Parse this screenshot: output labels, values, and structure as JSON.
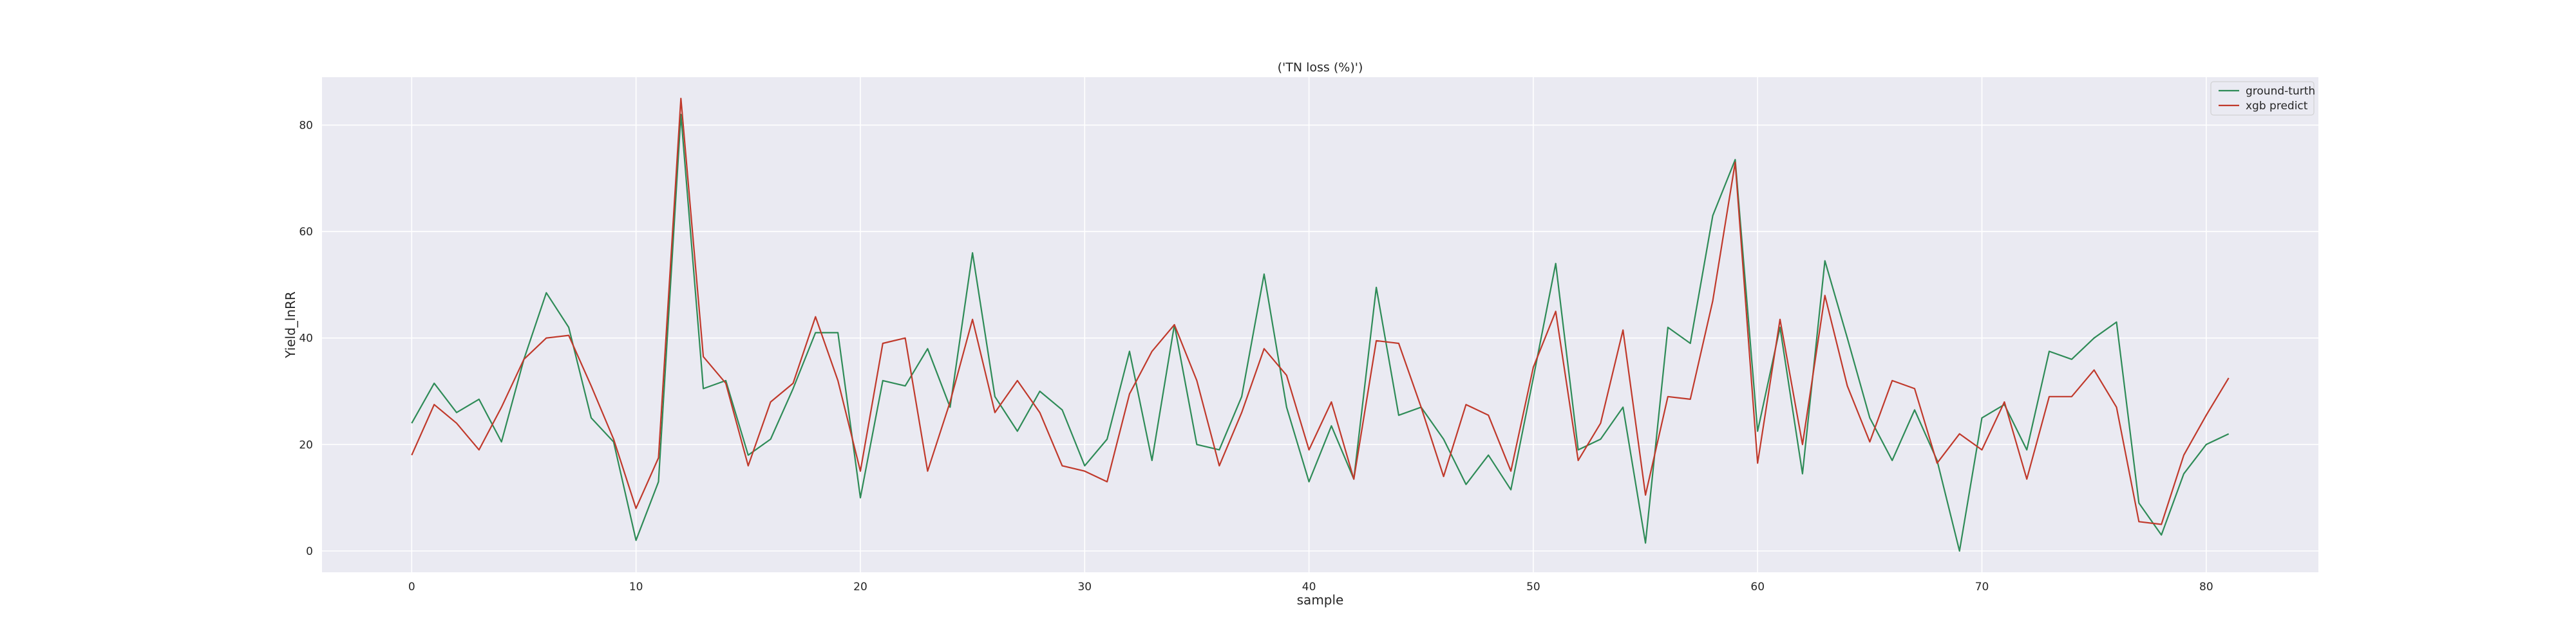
{
  "chart_data": {
    "type": "line",
    "title": "('TN loss (%)')",
    "xlabel": "sample",
    "ylabel": "Yield_lnRR",
    "xlim": [
      -4,
      85
    ],
    "ylim": [
      -4,
      89
    ],
    "xticks": [
      0,
      10,
      20,
      30,
      40,
      50,
      60,
      70,
      80
    ],
    "yticks": [
      0,
      20,
      40,
      60,
      80
    ],
    "grid": true,
    "legend_position": "top-right",
    "x": [
      0,
      1,
      2,
      3,
      4,
      5,
      6,
      7,
      8,
      9,
      10,
      11,
      12,
      13,
      14,
      15,
      16,
      17,
      18,
      19,
      20,
      21,
      22,
      23,
      24,
      25,
      26,
      27,
      28,
      29,
      30,
      31,
      32,
      33,
      34,
      35,
      36,
      37,
      38,
      39,
      40,
      41,
      42,
      43,
      44,
      45,
      46,
      47,
      48,
      49,
      50,
      51,
      52,
      53,
      54,
      55,
      56,
      57,
      58,
      59,
      60,
      61,
      62,
      63,
      64,
      65,
      66,
      67,
      68,
      69,
      70,
      71,
      72,
      73,
      74,
      75,
      76,
      77,
      78,
      79,
      80,
      81
    ],
    "series": [
      {
        "name": "ground-turth",
        "color": "#2e8b57",
        "values": [
          24,
          31.5,
          26,
          28.5,
          20.5,
          36,
          48.5,
          42,
          25,
          20.5,
          2,
          13,
          82,
          30.5,
          32,
          18,
          21,
          30.5,
          41,
          41,
          10,
          32,
          31,
          38,
          27,
          56,
          29,
          22.5,
          30,
          26.5,
          16,
          21,
          37.5,
          17,
          42.5,
          20,
          19,
          29,
          52,
          27,
          13,
          23.5,
          13.5,
          49.5,
          25.5,
          27,
          21,
          12.5,
          18,
          11.5,
          32.5,
          54,
          19,
          21,
          27,
          1.5,
          42,
          39,
          63,
          73.5,
          22.5,
          42,
          14.5,
          54.5,
          40,
          25,
          17,
          26.5,
          17,
          0,
          25,
          27.5,
          19,
          37.5,
          36,
          40,
          43,
          9,
          3,
          14.5,
          20,
          22
        ]
      },
      {
        "name": "xgb predict",
        "color": "#c0392b",
        "values": [
          18,
          27.5,
          24,
          19,
          27,
          36,
          40,
          40.5,
          31,
          21,
          8,
          17.5,
          85,
          36.5,
          31.5,
          16,
          28,
          31.5,
          44,
          32,
          15,
          39,
          40,
          15,
          28,
          43.5,
          26,
          32,
          26,
          16,
          15,
          13,
          29.5,
          37.5,
          42.5,
          32,
          16,
          26,
          38,
          33,
          19,
          28,
          13.5,
          39.5,
          39,
          27,
          14,
          27.5,
          25.5,
          15,
          34.5,
          45,
          17,
          24,
          41.5,
          10.5,
          29,
          28.5,
          47,
          73,
          16.5,
          43.5,
          20,
          48,
          31,
          20.5,
          32,
          30.5,
          16.5,
          22,
          19,
          28,
          13.5,
          29,
          29,
          34,
          27,
          5.5,
          5,
          18,
          25.5,
          32.5
        ]
      }
    ]
  }
}
